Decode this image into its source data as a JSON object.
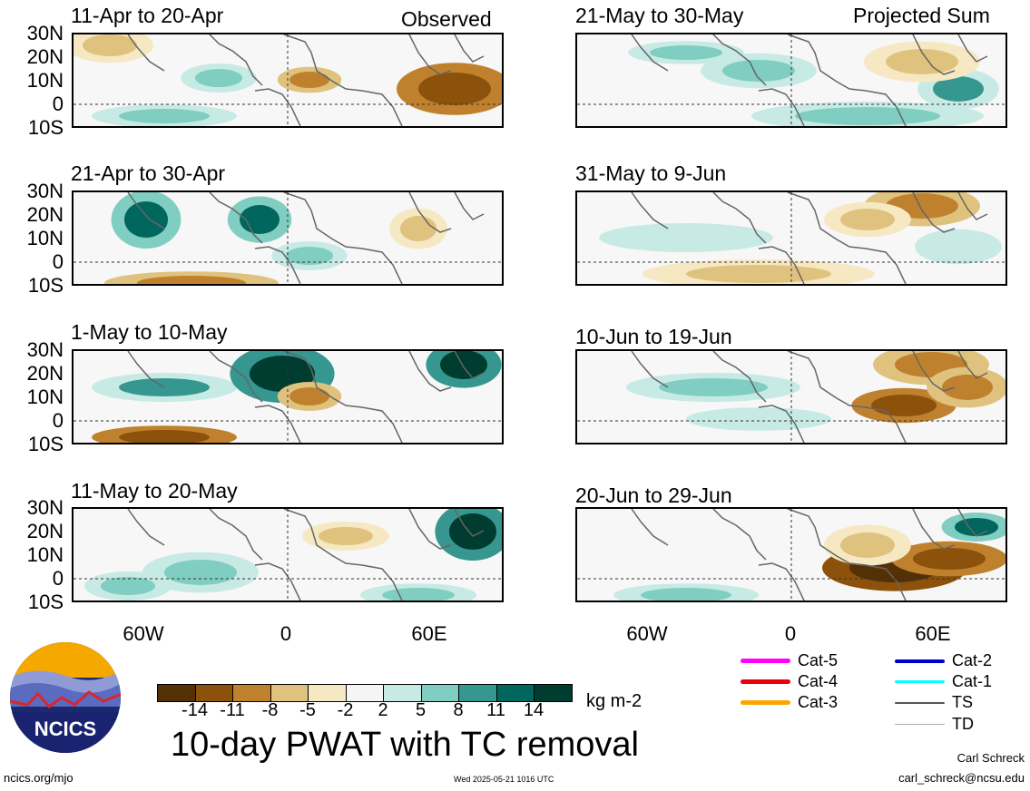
{
  "left_header": "Observed",
  "right_header": "Projected Sum",
  "left_panels": [
    "11-Apr to 20-Apr",
    "21-Apr to 30-Apr",
    "1-May to 10-May",
    "11-May to 20-May"
  ],
  "right_panels": [
    "21-May to 30-May",
    "31-May to 9-Jun",
    "10-Jun to 19-Jun",
    "20-Jun to 29-Jun"
  ],
  "lat_labels": [
    "30N",
    "20N",
    "10N",
    "0",
    "10S"
  ],
  "lon_labels": [
    "60W",
    "0",
    "60E"
  ],
  "colorbar": {
    "colors": [
      "#543005",
      "#8c510a",
      "#bf812d",
      "#dfc27d",
      "#f6e8c3",
      "#f5f5f5",
      "#c7eae5",
      "#80cdc1",
      "#35978f",
      "#01665e",
      "#003c30"
    ],
    "ticks": [
      "-14",
      "-11",
      "-8",
      "-5",
      "-2",
      "2",
      "5",
      "8",
      "11",
      "14"
    ],
    "units": "kg m-2"
  },
  "main_title": "10-day PWAT with TC removal",
  "legend": [
    {
      "label": "Cat-5",
      "color": "#ff00ff"
    },
    {
      "label": "Cat-4",
      "color": "#e8000b"
    },
    {
      "label": "Cat-3",
      "color": "#ffa500"
    },
    {
      "label": "Cat-2",
      "color": "#0000cc"
    },
    {
      "label": "Cat-1",
      "color": "#00ffff"
    },
    {
      "label": "TS",
      "color": "#555555"
    },
    {
      "label": "TD",
      "color": "#aaaaaa"
    }
  ],
  "logo_text": "NCICS",
  "footer_left": "ncics.org/mjo",
  "footer_center": "Wed 2025-05-21 1016 UTC",
  "footer_author": "Carl Schreck",
  "footer_email": "carl_schreck@ncsu.edu"
}
